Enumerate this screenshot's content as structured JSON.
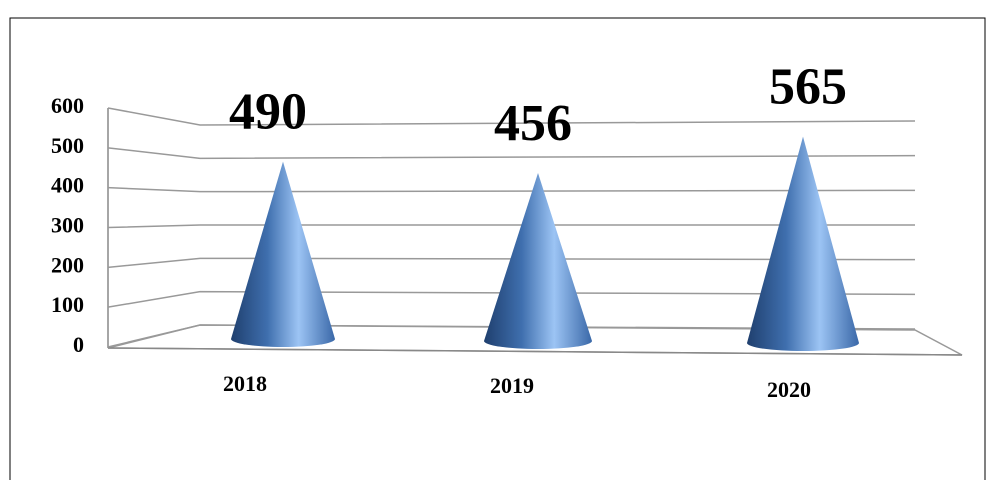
{
  "chart_data": {
    "type": "cone",
    "categories": [
      "2018",
      "2019",
      "2020"
    ],
    "values": [
      490,
      456,
      565
    ],
    "color": "#4f81bd",
    "ylim": [
      0,
      600
    ],
    "yticks": [
      0,
      100,
      200,
      300,
      400,
      500,
      600
    ],
    "grid": true
  }
}
